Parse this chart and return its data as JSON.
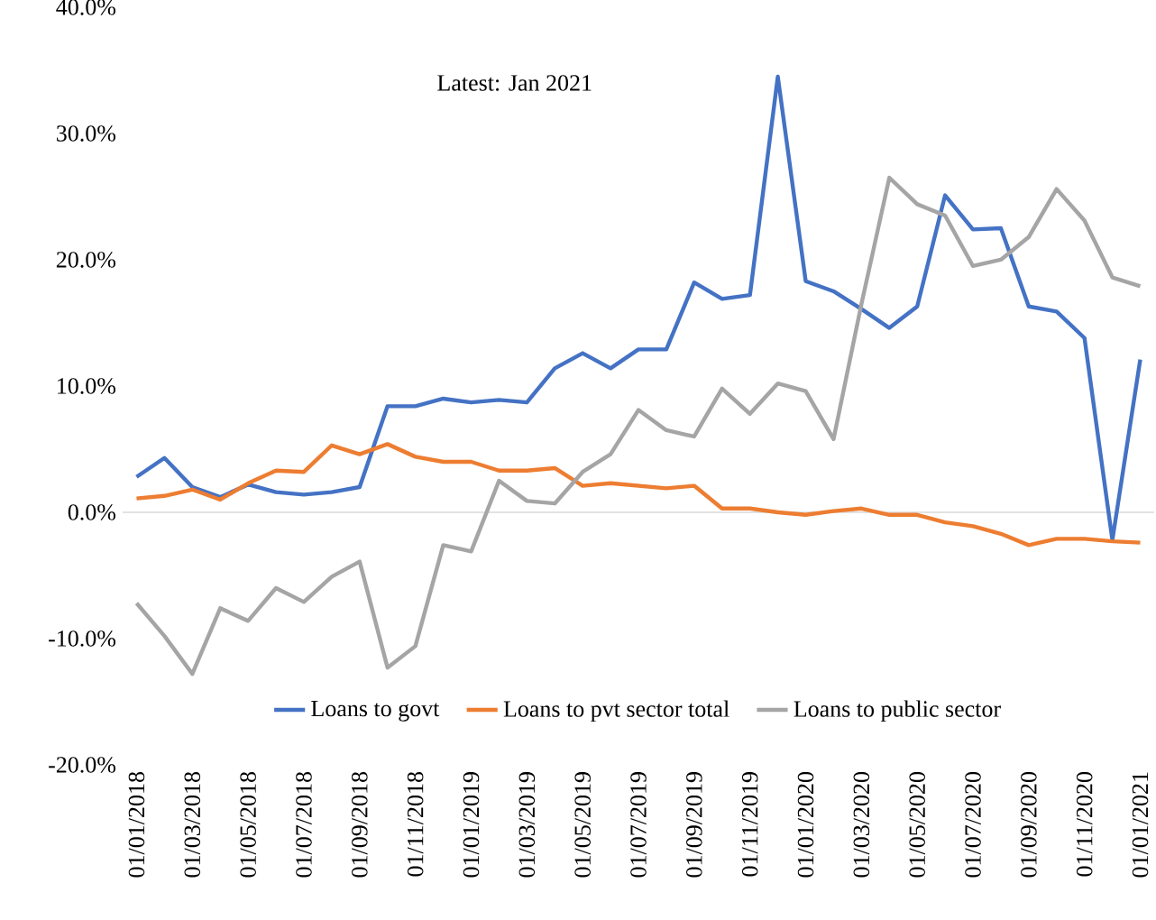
{
  "chart_data": {
    "type": "line",
    "categories": [
      "01/01/2018",
      null,
      "01/03/2018",
      null,
      "01/05/2018",
      null,
      "01/07/2018",
      null,
      "01/09/2018",
      null,
      "01/11/2018",
      null,
      "01/01/2019",
      null,
      "01/03/2019",
      null,
      "01/05/2019",
      null,
      "01/07/2019",
      null,
      "01/09/2019",
      null,
      "01/11/2019",
      null,
      "01/01/2020",
      null,
      "01/03/2020",
      null,
      "01/05/2020",
      null,
      "01/07/2020",
      null,
      "01/09/2020",
      null,
      "01/11/2020",
      null,
      "01/01/2021"
    ],
    "series": [
      {
        "name": "Loans to govt",
        "color": "#4472c4",
        "values": [
          2.8,
          4.3,
          2.0,
          1.2,
          2.2,
          1.6,
          1.4,
          1.6,
          2.0,
          8.4,
          8.4,
          9.0,
          8.7,
          8.9,
          8.7,
          11.4,
          12.6,
          11.4,
          12.9,
          12.9,
          18.2,
          16.9,
          17.2,
          34.5,
          18.3,
          17.5,
          16.1,
          14.6,
          16.3,
          25.1,
          22.4,
          22.5,
          16.3,
          15.9,
          13.8,
          -2.2,
          12.1
        ]
      },
      {
        "name": "Loans to pvt sector total",
        "color": "#ed7d31",
        "values": [
          1.1,
          1.3,
          1.8,
          1.0,
          2.3,
          3.3,
          3.2,
          5.3,
          4.6,
          5.4,
          4.4,
          4.0,
          4.0,
          3.3,
          3.3,
          3.5,
          2.1,
          2.3,
          2.1,
          1.9,
          2.1,
          0.3,
          0.3,
          0.0,
          -0.2,
          0.1,
          0.3,
          -0.2,
          -0.2,
          -0.8,
          -1.1,
          -1.7,
          -2.6,
          -2.1,
          -2.1,
          -2.3,
          -2.4
        ]
      },
      {
        "name": "Loans to public sector",
        "color": "#a5a5a5",
        "values": [
          -7.2,
          -9.8,
          -12.8,
          -7.6,
          -8.6,
          -6.0,
          -7.1,
          -5.1,
          -3.9,
          -12.3,
          -10.6,
          -2.6,
          -3.1,
          2.5,
          0.9,
          0.7,
          3.2,
          4.6,
          8.1,
          6.5,
          6.0,
          9.8,
          7.8,
          10.2,
          9.6,
          5.8,
          16.5,
          26.5,
          24.4,
          23.5,
          19.5,
          20.0,
          21.8,
          25.6,
          23.1,
          18.6,
          17.9
        ]
      }
    ],
    "ylim": [
      -20,
      40
    ],
    "yticks": [
      {
        "value": -20,
        "label": "-20.0%"
      },
      {
        "value": -10,
        "label": "-10.0%"
      },
      {
        "value": 0,
        "label": "0.0%"
      },
      {
        "value": 10,
        "label": "10.0%"
      },
      {
        "value": 20,
        "label": "20.0%"
      },
      {
        "value": 30,
        "label": "30.0%"
      },
      {
        "value": 40,
        "label": "40.0%"
      }
    ],
    "annotations": [
      "Latest: Jan 2021"
    ],
    "ref_lines": [
      {
        "axis": "y",
        "value": 0,
        "color": "#d9d9d9"
      }
    ],
    "legend": "bottom",
    "grid": false,
    "marker": "none",
    "line_style": "solid"
  }
}
